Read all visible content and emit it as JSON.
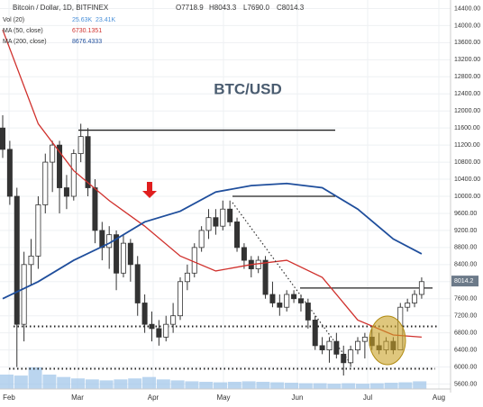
{
  "chart_data": {
    "type": "candlestick",
    "title": "BTC/USD",
    "header": {
      "symbol": "Bitcoin / Dollar, 1D, BITFINEX",
      "open": "O7718.9",
      "high": "H8043.3",
      "low": "L7690.0",
      "close": "C8014.3"
    },
    "indicators": [
      {
        "name": "Vol (20)",
        "values": [
          "25.63K",
          "23.41K"
        ],
        "color": "#4a90d9"
      },
      {
        "name": "MA (50, close)",
        "values": [
          "6730.1351"
        ],
        "color": "#d0312d"
      },
      {
        "name": "MA (200, close)",
        "values": [
          "8676.4333"
        ],
        "color": "#1f4e9c"
      }
    ],
    "last_price": {
      "value": 8014.2,
      "label": "8014.2"
    },
    "xticks": [
      "Feb",
      "Mar",
      "Apr",
      "May",
      "Jun",
      "Jul",
      "Aug"
    ],
    "ylim": [
      5400,
      14600
    ],
    "yticks": [
      {
        "value": 5600,
        "label": "5600.00"
      },
      {
        "value": 6000,
        "label": "6000.00"
      },
      {
        "value": 6400,
        "label": "6400.00"
      },
      {
        "value": 6800,
        "label": "6800.00"
      },
      {
        "value": 7200,
        "label": "7200.00"
      },
      {
        "value": 7600,
        "label": "7600.00"
      },
      {
        "value": 8000,
        "label": "8000.00"
      },
      {
        "value": 8400,
        "label": "8400.00"
      },
      {
        "value": 8800,
        "label": "8800.00"
      },
      {
        "value": 9200,
        "label": "9200.00"
      },
      {
        "value": 9600,
        "label": "9600.00"
      },
      {
        "value": 10000,
        "label": "10000.00"
      },
      {
        "value": 10400,
        "label": "10400.00"
      },
      {
        "value": 10800,
        "label": "10800.00"
      },
      {
        "value": 11200,
        "label": "11200.00"
      },
      {
        "value": 11600,
        "label": "11600.00"
      },
      {
        "value": 12000,
        "label": "12000.00"
      },
      {
        "value": 12400,
        "label": "12400.00"
      },
      {
        "value": 12800,
        "label": "12800.00"
      },
      {
        "value": 13200,
        "label": "13200.00"
      },
      {
        "value": 13600,
        "label": "13600.00"
      },
      {
        "value": 14000,
        "label": "14000.00"
      },
      {
        "value": 14400,
        "label": "14400.00"
      }
    ],
    "grid": true,
    "candles": [
      [
        11600,
        11900,
        10900,
        11100
      ],
      [
        11100,
        11300,
        9800,
        10000
      ],
      [
        10000,
        10200,
        6000,
        7000
      ],
      [
        7000,
        8700,
        6600,
        8400
      ],
      [
        8400,
        9000,
        7900,
        8600
      ],
      [
        8600,
        10000,
        8300,
        9800
      ],
      [
        9800,
        11000,
        9600,
        10800
      ],
      [
        10800,
        11300,
        10100,
        11200
      ],
      [
        11200,
        11300,
        9600,
        10200
      ],
      [
        10200,
        10500,
        9700,
        10000
      ],
      [
        10000,
        11100,
        9900,
        11000
      ],
      [
        11000,
        11700,
        10800,
        11400
      ],
      [
        11400,
        11600,
        10000,
        10200
      ],
      [
        10200,
        10400,
        8900,
        9200
      ],
      [
        9200,
        9400,
        8500,
        8800
      ],
      [
        8800,
        9300,
        8300,
        9100
      ],
      [
        9100,
        9200,
        7800,
        8200
      ],
      [
        8200,
        9100,
        8100,
        8900
      ],
      [
        8900,
        9000,
        8000,
        8400
      ],
      [
        8400,
        8600,
        7200,
        7500
      ],
      [
        7500,
        7700,
        6800,
        7000
      ],
      [
        7000,
        7300,
        6600,
        6900
      ],
      [
        6900,
        7100,
        6500,
        6700
      ],
      [
        6700,
        7200,
        6600,
        7000
      ],
      [
        7000,
        7500,
        6800,
        7200
      ],
      [
        7200,
        8100,
        7100,
        8000
      ],
      [
        8000,
        8400,
        7800,
        8200
      ],
      [
        8200,
        8900,
        8100,
        8800
      ],
      [
        8800,
        9300,
        8700,
        9200
      ],
      [
        9200,
        9700,
        9000,
        9500
      ],
      [
        9500,
        9700,
        9100,
        9300
      ],
      [
        9300,
        9900,
        9200,
        9700
      ],
      [
        9700,
        9900,
        9300,
        9400
      ],
      [
        9400,
        9500,
        8700,
        8800
      ],
      [
        8800,
        8900,
        8300,
        8500
      ],
      [
        8500,
        8600,
        8100,
        8300
      ],
      [
        8300,
        8600,
        8200,
        8500
      ],
      [
        8500,
        8600,
        7600,
        7700
      ],
      [
        7700,
        8000,
        7400,
        7500
      ],
      [
        7500,
        7700,
        7200,
        7400
      ],
      [
        7400,
        7800,
        7300,
        7700
      ],
      [
        7700,
        7800,
        7500,
        7600
      ],
      [
        7600,
        7700,
        7300,
        7500
      ],
      [
        7500,
        7600,
        6900,
        7100
      ],
      [
        7100,
        7200,
        6400,
        6500
      ],
      [
        6500,
        6700,
        6300,
        6400
      ],
      [
        6400,
        6700,
        6100,
        6600
      ],
      [
        6600,
        6800,
        6200,
        6300
      ],
      [
        6300,
        6500,
        5800,
        6100
      ],
      [
        6100,
        6500,
        6000,
        6400
      ],
      [
        6400,
        6700,
        6300,
        6600
      ],
      [
        6600,
        6800,
        6200,
        6700
      ],
      [
        6700,
        6900,
        6400,
        6500
      ],
      [
        6500,
        6800,
        6300,
        6400
      ],
      [
        6400,
        6700,
        6300,
        6600
      ],
      [
        6600,
        6700,
        6300,
        6400
      ],
      [
        6400,
        7500,
        6400,
        7400
      ],
      [
        7400,
        7600,
        7300,
        7500
      ],
      [
        7500,
        7800,
        7400,
        7700
      ],
      [
        7700,
        8100,
        7600,
        8000
      ]
    ],
    "up_color": "#ffffff",
    "down_color": "#333333",
    "series": [
      {
        "name": "MA (50, close)",
        "color": "#d0312d",
        "values": [
          13900,
          11700,
          10600,
          9900,
          9300,
          8600,
          8250,
          8400,
          8500,
          8100,
          7100,
          6750,
          6700
        ]
      },
      {
        "name": "MA (200, close)",
        "color": "#1f4e9c",
        "values": [
          7600,
          8000,
          8500,
          8900,
          9400,
          9650,
          10100,
          10250,
          10300,
          10200,
          9700,
          9000,
          8650
        ]
      }
    ],
    "volume": {
      "color": "#9cc3e8",
      "values": [
        30,
        28,
        45,
        30,
        25,
        22,
        20,
        18,
        20,
        22,
        25,
        20,
        18,
        16,
        15,
        14,
        15,
        16,
        15,
        14,
        13,
        12,
        12,
        11,
        12,
        11,
        12,
        13,
        14,
        16
      ]
    },
    "levels": [
      11550,
      10000,
      7850
    ],
    "dotted_levels": [
      6950,
      5960
    ]
  }
}
